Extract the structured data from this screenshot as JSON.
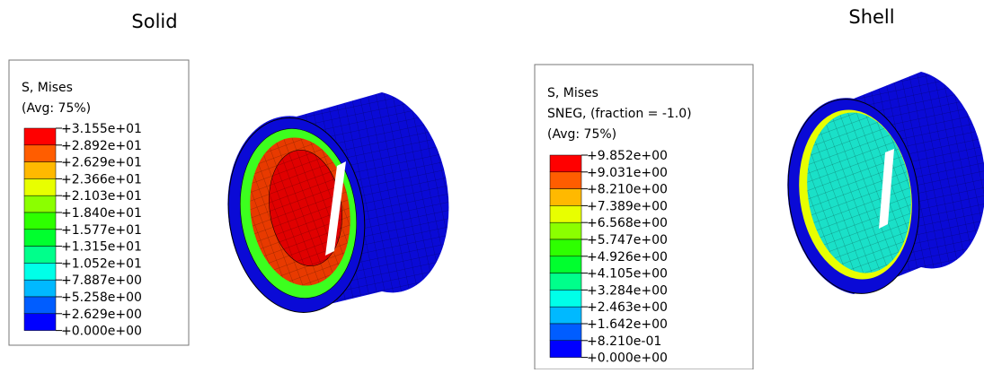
{
  "panels": [
    {
      "title": "Solid",
      "legend": {
        "header": [
          "S, Mises",
          "(Avg: 75%)"
        ],
        "labels": [
          "+3.155e+01",
          "+2.892e+01",
          "+2.629e+01",
          "+2.366e+01",
          "+2.103e+01",
          "+1.840e+01",
          "+1.577e+01",
          "+1.315e+01",
          "+1.052e+01",
          "+7.887e+00",
          "+5.258e+00",
          "+2.629e+00",
          "+0.000e+00"
        ],
        "colors": [
          "#ff0000",
          "#ff5d00",
          "#ffb900",
          "#e8ff00",
          "#8bff00",
          "#2eff00",
          "#00ff2e",
          "#00ff8b",
          "#00ffe8",
          "#00b9ff",
          "#005dff",
          "#0000ff"
        ]
      }
    },
    {
      "title": "Shell",
      "legend": {
        "header": [
          "S, Mises",
          "SNEG, (fraction = -1.0)",
          "(Avg: 75%)"
        ],
        "labels": [
          "+9.852e+00",
          "+9.031e+00",
          "+8.210e+00",
          "+7.389e+00",
          "+6.568e+00",
          "+5.747e+00",
          "+4.926e+00",
          "+4.105e+00",
          "+3.284e+00",
          "+2.463e+00",
          "+1.642e+00",
          "+8.210e-01",
          "+0.000e+00"
        ],
        "colors": [
          "#ff0000",
          "#ff5d00",
          "#ffb900",
          "#e8ff00",
          "#8bff00",
          "#2eff00",
          "#00ff2e",
          "#00ff8b",
          "#00ffe8",
          "#00b9ff",
          "#005dff",
          "#0000ff"
        ]
      }
    }
  ]
}
